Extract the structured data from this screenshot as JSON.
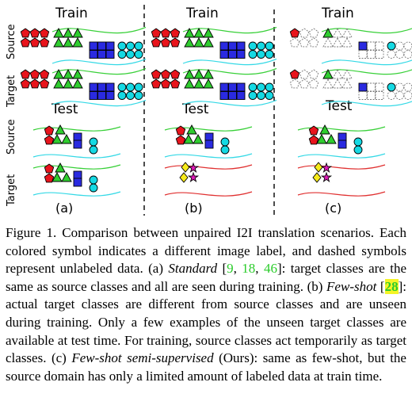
{
  "figure": {
    "panels": [
      {
        "id": "a",
        "train_title": "Train",
        "test_title": "Test",
        "label": "(a)"
      },
      {
        "id": "b",
        "train_title": "Train",
        "test_title": "Test",
        "label": "(b)"
      },
      {
        "id": "c",
        "train_title": "Train",
        "test_title": "Test",
        "label": "(c)"
      }
    ],
    "row_labels": {
      "source": "Source",
      "target": "Target"
    },
    "colors": {
      "red": "#e8141c",
      "green": "#2fcd2f",
      "blue": "#2a2ae0",
      "cyan": "#15d9e3",
      "yellow": "#f6ea1a",
      "magenta": "#e01ab8",
      "line_green": "#38d038",
      "line_cyan": "#35d9e6",
      "line_red": "#e03030"
    }
  },
  "caption": {
    "figure_label": "Figure 1.",
    "intro": " Comparison between unpaired I2I translation scenarios. Each colored symbol indicates a different image label, and dashed symbols represent unlabeled data. (a) ",
    "standard_term": "Standard",
    "cite_open": " [",
    "cite_9": "9",
    "cite_sep1": ", ",
    "cite_18": "18",
    "cite_sep2": ", ",
    "cite_46": "46",
    "cite_close_a": "]",
    "text_a": ": target classes are the same as source classes and all are seen during training. (b) ",
    "fewshot_term": "Few-shot",
    "cite_open_b": " [",
    "cite_28": "28",
    "cite_close_b": "]",
    "text_b": ": actual target classes are different from source classes and are unseen during training. Only a few examples of the unseen target classes are available at test time. For training, source classes act temporarily as target classes. (c) ",
    "fewshot_semi_term": "Few-shot semi-supervised",
    "text_c": " (Ours): same as few-shot, but the source domain has only a limited amount of labeled data at train time."
  }
}
